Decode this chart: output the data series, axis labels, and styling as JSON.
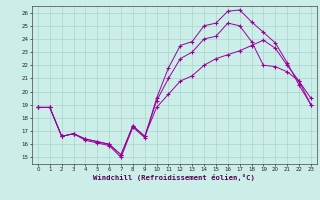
{
  "xlabel": "Windchill (Refroidissement éolien,°C)",
  "bg_color": "#cceee8",
  "grid_color": "#aad4ce",
  "line_color": "#990099",
  "x_ticks": [
    0,
    1,
    2,
    3,
    4,
    5,
    6,
    7,
    8,
    9,
    10,
    11,
    12,
    13,
    14,
    15,
    16,
    17,
    18,
    19,
    20,
    21,
    22,
    23
  ],
  "y_ticks": [
    15,
    16,
    17,
    18,
    19,
    20,
    21,
    22,
    23,
    24,
    25,
    26
  ],
  "xlim": [
    -0.5,
    23.5
  ],
  "ylim": [
    14.5,
    26.5
  ],
  "line1_x": [
    0,
    1,
    2,
    3,
    4,
    5,
    6,
    7,
    8,
    9,
    10,
    11,
    12,
    13,
    14,
    15,
    16,
    17,
    18,
    19,
    20,
    21,
    22,
    23
  ],
  "line1_y": [
    18.8,
    18.8,
    16.6,
    16.8,
    16.3,
    16.1,
    15.9,
    15.0,
    17.3,
    16.5,
    19.5,
    21.8,
    23.5,
    23.8,
    25.0,
    25.2,
    26.1,
    26.2,
    25.3,
    24.5,
    23.7,
    22.2,
    20.5,
    19.0
  ],
  "line2_x": [
    0,
    1,
    2,
    3,
    4,
    5,
    6,
    7,
    8,
    9,
    10,
    11,
    12,
    13,
    14,
    15,
    16,
    17,
    18,
    19,
    20,
    21,
    22,
    23
  ],
  "line2_y": [
    18.8,
    18.8,
    16.6,
    16.8,
    16.4,
    16.2,
    16.0,
    15.2,
    17.4,
    16.6,
    19.3,
    21.0,
    22.5,
    23.0,
    24.0,
    24.2,
    25.2,
    25.0,
    23.8,
    22.0,
    21.9,
    21.5,
    20.8,
    19.5
  ],
  "line3_x": [
    0,
    1,
    2,
    3,
    4,
    5,
    6,
    7,
    8,
    9,
    10,
    11,
    12,
    13,
    14,
    15,
    16,
    17,
    18,
    19,
    20,
    21,
    22,
    23
  ],
  "line3_y": [
    18.8,
    18.8,
    16.6,
    16.8,
    16.4,
    16.2,
    16.0,
    15.2,
    17.4,
    16.6,
    18.8,
    19.8,
    20.8,
    21.2,
    22.0,
    22.5,
    22.8,
    23.1,
    23.5,
    23.9,
    23.3,
    22.0,
    20.8,
    19.0
  ],
  "label_fontsize": 4.0,
  "xlabel_fontsize": 5.2,
  "tick_labelsize": 4.0,
  "linewidth": 0.7,
  "markersize": 3.0
}
